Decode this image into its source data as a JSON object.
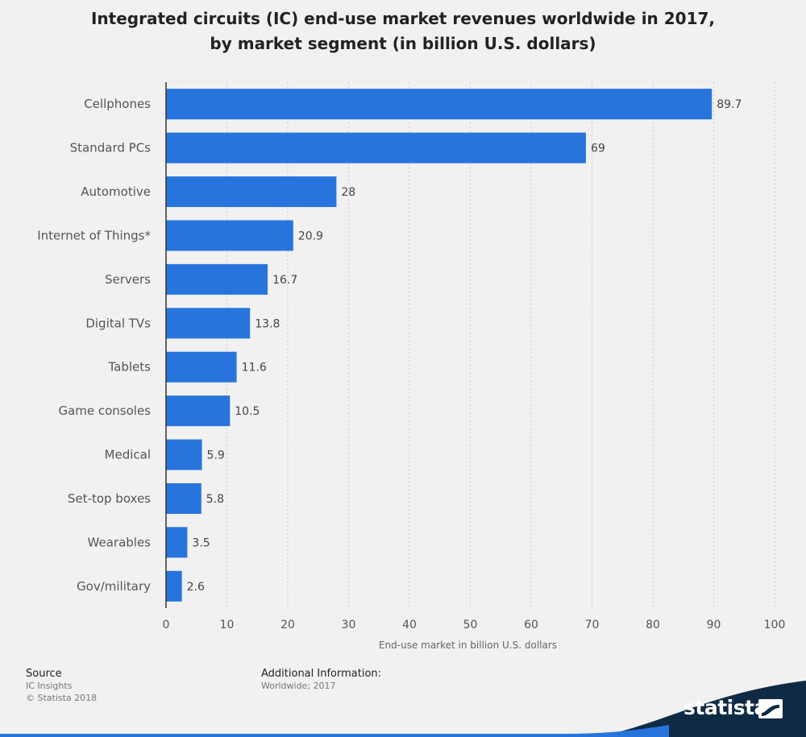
{
  "title": {
    "line1": "Integrated circuits (IC) end-use market revenues worldwide in 2017,",
    "line2": "by market segment (in billion U.S. dollars)"
  },
  "chart_data": {
    "type": "bar",
    "orientation": "horizontal",
    "categories": [
      "Cellphones",
      "Standard PCs",
      "Automotive",
      "Internet of Things*",
      "Servers",
      "Digital TVs",
      "Tablets",
      "Game consoles",
      "Medical",
      "Set-top boxes",
      "Wearables",
      "Gov/military"
    ],
    "values": [
      89.7,
      69,
      28,
      20.9,
      16.7,
      13.8,
      11.6,
      10.5,
      5.9,
      5.8,
      3.5,
      2.6
    ],
    "value_labels": [
      "89.7",
      "69",
      "28",
      "20.9",
      "16.7",
      "13.8",
      "11.6",
      "10.5",
      "5.9",
      "5.8",
      "3.5",
      "2.6"
    ],
    "xlabel": "End-use market in billion U.S. dollars",
    "ylabel": "",
    "xlim": [
      0,
      100
    ],
    "ticks": [
      0,
      10,
      20,
      30,
      40,
      50,
      60,
      70,
      80,
      90,
      100
    ],
    "bar_color": "#2874dd",
    "grid": true
  },
  "footer": {
    "source_heading": "Source",
    "source_lines": [
      "IC Insights",
      "© Statista 2018"
    ],
    "info_heading": "Additional Information:",
    "info_lines": [
      "Worldwide; 2017"
    ]
  },
  "brand": {
    "name": "statista",
    "band_color": "#0f2a44",
    "accent_color": "#2874dd"
  }
}
